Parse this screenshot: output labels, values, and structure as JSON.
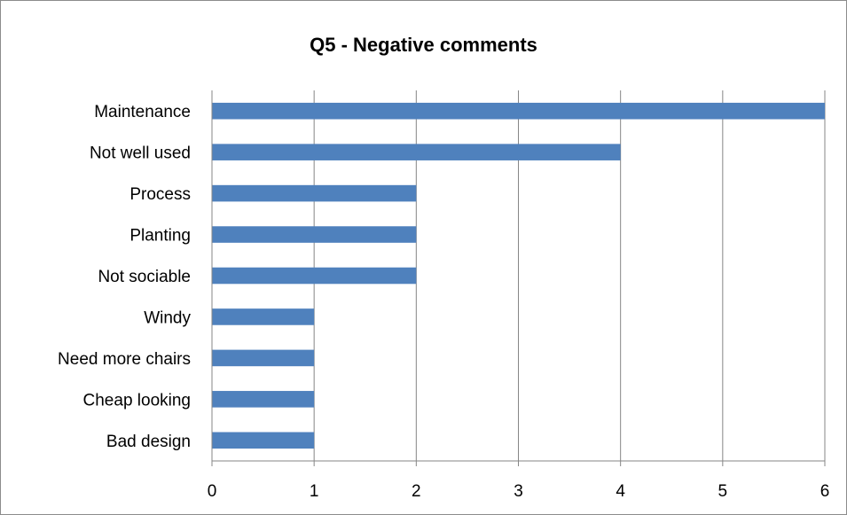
{
  "chart_data": {
    "type": "bar",
    "orientation": "horizontal",
    "title": "Q5 - Negative comments",
    "categories": [
      "Maintenance",
      "Not well used",
      "Process",
      "Planting",
      "Not sociable",
      "Windy",
      "Need more chairs",
      "Cheap looking",
      "Bad design"
    ],
    "values": [
      6,
      4,
      2,
      2,
      2,
      1,
      1,
      1,
      1
    ],
    "xlim": [
      0,
      6
    ],
    "xticks": [
      0,
      1,
      2,
      3,
      4,
      5,
      6
    ],
    "grid": true,
    "legend": "none",
    "bar_color": "#4f81bd"
  }
}
